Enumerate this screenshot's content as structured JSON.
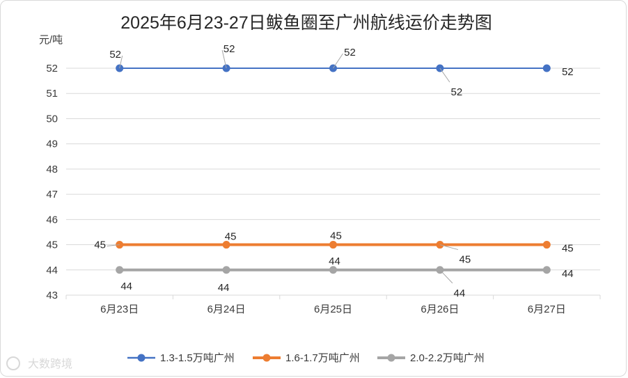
{
  "chart_data": {
    "type": "line",
    "title": "2025年6月23-27日鲅鱼圈至广州航线运价走势图",
    "ylabel": "元/吨",
    "xlabel": "",
    "categories": [
      "6月23日",
      "6月24日",
      "6月25日",
      "6月26日",
      "6月27日"
    ],
    "ylim": [
      43,
      52
    ],
    "yticks": [
      43,
      44,
      45,
      46,
      47,
      48,
      49,
      50,
      51,
      52
    ],
    "grid": true,
    "legend_position": "bottom",
    "series": [
      {
        "name": "1.3-1.5万吨广州",
        "values": [
          52,
          52,
          52,
          52,
          52
        ],
        "color": "#4472c4"
      },
      {
        "name": "1.6-1.7万吨广州",
        "values": [
          45,
          45,
          45,
          45,
          45
        ],
        "color": "#ed7d31"
      },
      {
        "name": "2.0-2.2万吨广州",
        "values": [
          44,
          44,
          44,
          44,
          44
        ],
        "color": "#a5a5a5"
      }
    ]
  },
  "watermark": {
    "text": "大数跨境"
  }
}
